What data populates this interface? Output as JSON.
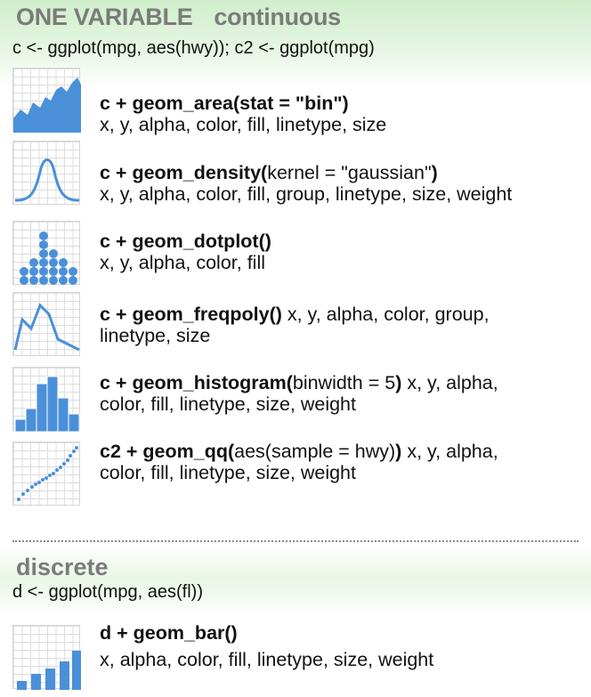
{
  "header": {
    "title": "ONE VARIABLE",
    "subtitle": "continuous"
  },
  "setup_continuous": "c <- ggplot(mpg, aes(hwy)); c2 <- ggplot(mpg)",
  "geoms": [
    {
      "call_bold": "c + geom_area(stat = \"bin\")",
      "call_plain": "",
      "call_tail": "",
      "line1_rest": "",
      "line2": "x, y, alpha, color, fill,  linetype, size",
      "icon": "area-plot-icon"
    },
    {
      "call_bold": "c + geom_density(",
      "call_plain": "kernel = \"gaussian\"",
      "call_tail": ")",
      "line1_rest": "",
      "line2": "x, y, alpha, color, fill, group, linetype, size, weight",
      "icon": "density-plot-icon"
    },
    {
      "call_bold": "c + geom_dotplot()",
      "call_plain": "",
      "call_tail": "",
      "line1_rest": "",
      "line2": "x, y, alpha, color, fill",
      "icon": "dotplot-icon"
    },
    {
      "call_bold": "c + geom_freqpoly()",
      "call_plain": "",
      "call_tail": "",
      "line1_rest": " x, y, alpha, color, group,",
      "line2": "linetype, size",
      "icon": "freqpoly-icon"
    },
    {
      "call_bold": "c + geom_histogram(",
      "call_plain": "binwidth = 5",
      "call_tail": ")",
      "line1_rest": " x, y, alpha,",
      "line2": "color, fill, linetype, size, weight",
      "icon": "histogram-icon"
    },
    {
      "call_bold": "c2 + geom_qq(",
      "call_plain": "aes(sample = hwy)",
      "call_tail": ")",
      "line1_rest": " x, y, alpha,",
      "line2": "color, fill, linetype, size, weight",
      "icon": "qq-plot-icon"
    }
  ],
  "discrete": {
    "title": "discrete",
    "setup": "d <- ggplot(mpg, aes(fl))",
    "geom": {
      "call_bold": "d + geom_bar()",
      "line2": "x, alpha, color, fill, linetype, size, weight",
      "icon": "bar-chart-icon"
    }
  },
  "colors": {
    "accent_blue": "#4a90d9",
    "heading_gray": "#7b7b7b",
    "band_green": "#cfeecb"
  }
}
